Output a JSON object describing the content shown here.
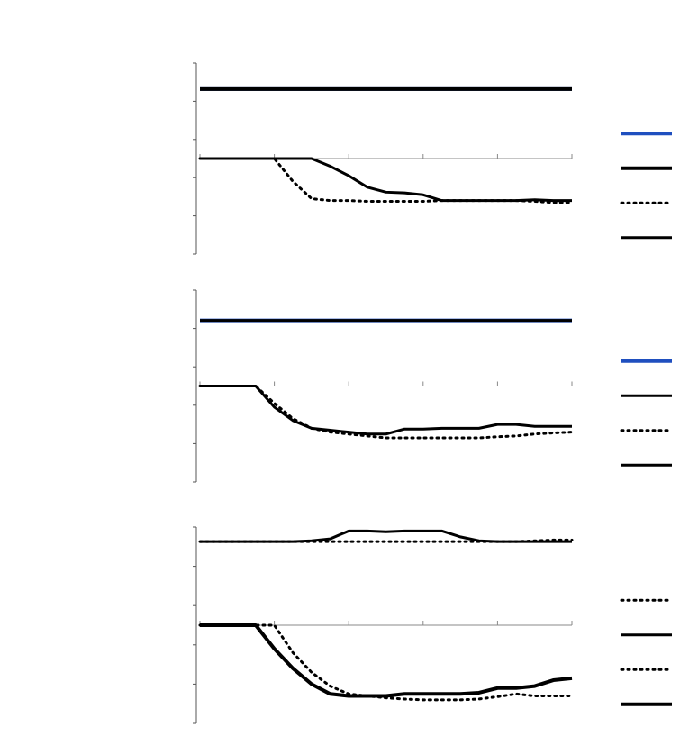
{
  "chart_data": [
    {
      "type": "line",
      "xlim": [
        0,
        5
      ],
      "xticks": [
        0,
        1,
        2,
        3,
        4,
        5
      ],
      "ylim": [
        -2.5,
        2.5
      ],
      "yticks": [
        -2.5,
        -1.5,
        -0.5,
        0.5,
        1.5,
        2.5
      ],
      "legend": "right",
      "x": [
        0,
        0.25,
        0.5,
        0.75,
        1,
        1.25,
        1.5,
        1.75,
        2,
        2.25,
        2.5,
        2.75,
        3,
        3.25,
        3.5,
        3.75,
        4,
        4.25,
        4.5,
        4.75,
        5
      ],
      "series": [
        {
          "color": "#1f4fbf",
          "dash": "solid",
          "line_width": 4,
          "values": [
            1.82,
            1.82,
            1.82,
            1.82,
            1.82,
            1.82,
            1.82,
            1.82,
            1.82,
            1.82,
            1.82,
            1.82,
            1.82,
            1.82,
            1.82,
            1.82,
            1.82,
            1.82,
            1.82,
            1.82,
            1.82
          ]
        },
        {
          "color": "#000000",
          "dash": "solid",
          "line_width": 4,
          "values": [
            1.82,
            1.82,
            1.82,
            1.82,
            1.82,
            1.82,
            1.82,
            1.82,
            1.82,
            1.82,
            1.82,
            1.82,
            1.82,
            1.82,
            1.82,
            1.82,
            1.82,
            1.82,
            1.82,
            1.82,
            1.82
          ]
        },
        {
          "color": "#000000",
          "dash": "dotted",
          "line_width": 3,
          "values": [
            0,
            0,
            0,
            0,
            0,
            -0.6,
            -1.05,
            -1.1,
            -1.1,
            -1.12,
            -1.12,
            -1.12,
            -1.12,
            -1.1,
            -1.1,
            -1.1,
            -1.1,
            -1.1,
            -1.12,
            -1.15,
            -1.15
          ]
        },
        {
          "color": "#000000",
          "dash": "solid",
          "line_width": 3,
          "values": [
            0,
            0,
            0,
            0,
            0,
            0,
            0,
            -0.2,
            -0.45,
            -0.75,
            -0.88,
            -0.9,
            -0.95,
            -1.1,
            -1.1,
            -1.1,
            -1.1,
            -1.1,
            -1.08,
            -1.1,
            -1.1
          ]
        }
      ]
    },
    {
      "type": "line",
      "xlim": [
        0,
        5
      ],
      "xticks": [
        0,
        1,
        2,
        3,
        4,
        5
      ],
      "ylim": [
        -2.5,
        2.5
      ],
      "yticks": [
        -2.5,
        -1.5,
        -0.5,
        0.5,
        1.5,
        2.5
      ],
      "legend": "right",
      "x": [
        0,
        0.25,
        0.5,
        0.75,
        1,
        1.25,
        1.5,
        1.75,
        2,
        2.25,
        2.5,
        2.75,
        3,
        3.25,
        3.5,
        3.75,
        4,
        4.25,
        4.5,
        4.75,
        5
      ],
      "series": [
        {
          "color": "#1f4fbf",
          "dash": "solid",
          "line_width": 4,
          "values": [
            1.71,
            1.71,
            1.71,
            1.71,
            1.71,
            1.71,
            1.71,
            1.71,
            1.71,
            1.71,
            1.71,
            1.71,
            1.71,
            1.71,
            1.71,
            1.71,
            1.71,
            1.71,
            1.71,
            1.71,
            1.71
          ]
        },
        {
          "color": "#000000",
          "dash": "solid",
          "line_width": 3,
          "values": [
            1.71,
            1.71,
            1.71,
            1.71,
            1.71,
            1.71,
            1.71,
            1.71,
            1.71,
            1.71,
            1.71,
            1.71,
            1.71,
            1.71,
            1.71,
            1.71,
            1.71,
            1.71,
            1.71,
            1.71,
            1.71
          ]
        },
        {
          "color": "#000000",
          "dash": "dotted",
          "line_width": 3,
          "values": [
            0,
            0,
            0,
            0,
            -0.45,
            -0.85,
            -1.1,
            -1.2,
            -1.25,
            -1.3,
            -1.35,
            -1.35,
            -1.35,
            -1.35,
            -1.35,
            -1.35,
            -1.32,
            -1.3,
            -1.25,
            -1.22,
            -1.2
          ]
        },
        {
          "color": "#000000",
          "dash": "solid",
          "line_width": 3,
          "values": [
            0,
            0,
            0,
            0,
            -0.55,
            -0.9,
            -1.1,
            -1.15,
            -1.2,
            -1.25,
            -1.25,
            -1.12,
            -1.12,
            -1.1,
            -1.1,
            -1.1,
            -1.0,
            -1.0,
            -1.05,
            -1.05,
            -1.05
          ]
        }
      ]
    },
    {
      "type": "line",
      "xlim": [
        0,
        5
      ],
      "xticks": [
        0,
        1,
        2,
        3,
        4,
        5
      ],
      "ylim": [
        -2.5,
        2.5
      ],
      "yticks": [
        -2.5,
        -1.5,
        -0.5,
        0.5,
        1.5,
        2.5
      ],
      "legend": "right",
      "x": [
        0,
        0.25,
        0.5,
        0.75,
        1,
        1.25,
        1.5,
        1.75,
        2,
        2.25,
        2.5,
        2.75,
        3,
        3.25,
        3.5,
        3.75,
        4,
        4.25,
        4.5,
        4.75,
        5
      ],
      "series": [
        {
          "color": "#000000",
          "dash": "dotted",
          "line_width": 3,
          "values": [
            2.13,
            2.13,
            2.13,
            2.13,
            2.13,
            2.13,
            2.13,
            2.13,
            2.13,
            2.13,
            2.13,
            2.13,
            2.13,
            2.13,
            2.13,
            2.13,
            2.13,
            2.13,
            2.15,
            2.17,
            2.17
          ]
        },
        {
          "color": "#000000",
          "dash": "solid",
          "line_width": 3,
          "values": [
            2.13,
            2.13,
            2.13,
            2.13,
            2.13,
            2.13,
            2.15,
            2.2,
            2.4,
            2.4,
            2.38,
            2.4,
            2.4,
            2.4,
            2.25,
            2.15,
            2.13,
            2.13,
            2.13,
            2.13,
            2.13
          ]
        },
        {
          "color": "#000000",
          "dash": "dotted",
          "line_width": 3,
          "values": [
            0,
            0,
            0,
            0,
            0,
            -0.7,
            -1.2,
            -1.55,
            -1.75,
            -1.8,
            -1.85,
            -1.88,
            -1.9,
            -1.9,
            -1.9,
            -1.88,
            -1.82,
            -1.75,
            -1.8,
            -1.8,
            -1.8
          ]
        },
        {
          "color": "#000000",
          "dash": "solid",
          "line_width": 4,
          "values": [
            0,
            0,
            0,
            0,
            -0.6,
            -1.1,
            -1.5,
            -1.75,
            -1.8,
            -1.8,
            -1.8,
            -1.75,
            -1.75,
            -1.75,
            -1.75,
            -1.72,
            -1.6,
            -1.6,
            -1.55,
            -1.4,
            -1.35
          ]
        }
      ]
    }
  ]
}
